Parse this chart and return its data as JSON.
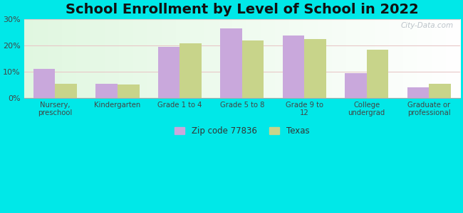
{
  "title": "School Enrollment by Level of School in 2022",
  "categories": [
    "Nursery,\npreschool",
    "Kindergarten",
    "Grade 1 to 4",
    "Grade 5 to 8",
    "Grade 9 to\n12",
    "College\nundergrad",
    "Graduate or\nprofessional"
  ],
  "zip_values": [
    11.0,
    5.5,
    19.5,
    26.5,
    24.0,
    9.5,
    4.0
  ],
  "texas_values": [
    5.5,
    5.0,
    21.0,
    22.0,
    22.5,
    18.5,
    5.5
  ],
  "zip_color": "#c9a8dc",
  "texas_color": "#c8d48a",
  "background_color": "#00e8e8",
  "title_fontsize": 14,
  "legend_zip_label": "Zip code 77836",
  "legend_texas_label": "Texas",
  "ylim": [
    0,
    30
  ],
  "yticks": [
    0,
    10,
    20,
    30
  ],
  "bar_width": 0.35,
  "watermark": "City-Data.com"
}
